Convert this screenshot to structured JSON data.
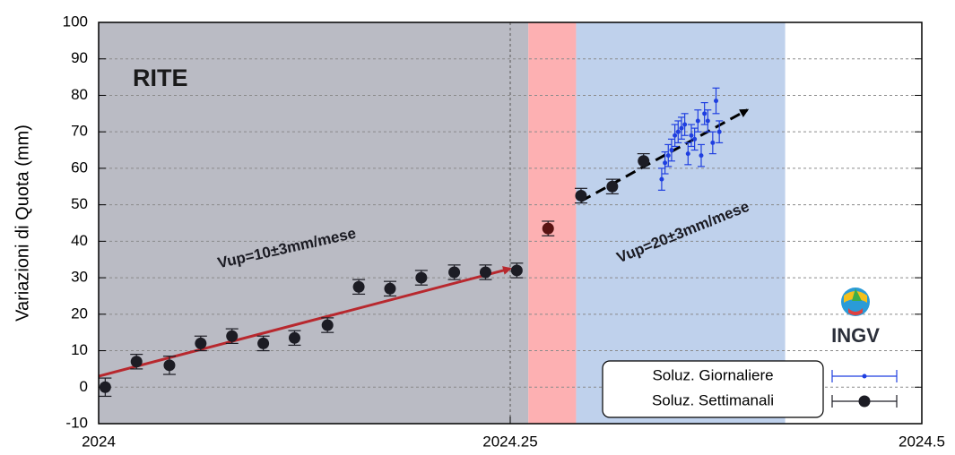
{
  "chart_data": {
    "type": "scatter",
    "y_label": "Variazioni di Quota (mm)",
    "station": "RITE",
    "xlim": [
      2024,
      2024.5
    ],
    "xticks": [
      2024,
      2024.25,
      2024.5
    ],
    "ylim": [
      -10,
      100
    ],
    "yticks": [
      -10,
      0,
      10,
      20,
      30,
      40,
      50,
      60,
      70,
      80,
      90,
      100
    ],
    "grid": true,
    "regions": [
      {
        "from": 2024,
        "to": 2024.261,
        "color": "#babbc4"
      },
      {
        "from": 2024.261,
        "to": 2024.29,
        "color": "#fdb0b2"
      },
      {
        "from": 2024.29,
        "to": 2024.417,
        "color": "#bfd1ec"
      }
    ],
    "series": [
      {
        "name": "Soluz. Giornaliere",
        "color": "#1f3fe0",
        "marker_size": 2.5,
        "x": [
          2024.342,
          2024.344,
          2024.346,
          2024.348,
          2024.35,
          2024.352,
          2024.354,
          2024.356,
          2024.358,
          2024.36,
          2024.362,
          2024.364,
          2024.366,
          2024.368,
          2024.37,
          2024.373,
          2024.375,
          2024.377
        ],
        "values": [
          57,
          61.5,
          63.5,
          65,
          69,
          70,
          71,
          72,
          64,
          69,
          68,
          73,
          63.5,
          75,
          73,
          67,
          78.5,
          70
        ],
        "errors": [
          3,
          3,
          3,
          3,
          3,
          3,
          3,
          3,
          3,
          3,
          3,
          3,
          3,
          3,
          3,
          3,
          3.5,
          3
        ]
      },
      {
        "name": "Soluz. Settimanali",
        "color": "#1c1c24",
        "marker_size": 6.5,
        "point_colors": [
          "#1c1c24",
          "#1c1c24",
          "#1c1c24",
          "#1c1c24",
          "#1c1c24",
          "#1c1c24",
          "#1c1c24",
          "#1c1c24",
          "#1c1c24",
          "#1c1c24",
          "#1c1c24",
          "#1c1c24",
          "#1c1c24",
          "#1c1c24",
          "#5a1212",
          "#1c1c24",
          "#1c1c24",
          "#1c1c24"
        ],
        "x": [
          2024.004,
          2024.023,
          2024.043,
          2024.062,
          2024.081,
          2024.1,
          2024.119,
          2024.139,
          2024.158,
          2024.177,
          2024.196,
          2024.216,
          2024.235,
          2024.254,
          2024.273,
          2024.293,
          2024.312,
          2024.331
        ],
        "values": [
          0,
          7,
          6,
          12,
          14,
          12,
          13.5,
          17,
          27.5,
          27,
          30,
          31.5,
          31.5,
          32,
          43.5,
          52.5,
          55,
          62
        ],
        "errors": [
          2.5,
          2,
          2.5,
          2,
          2,
          2,
          2,
          2,
          2,
          2,
          2,
          2,
          2,
          2,
          2,
          2,
          2,
          2
        ]
      }
    ],
    "arrows": [
      {
        "x": [
          2024,
          2024.25
        ],
        "y": [
          3,
          32.5
        ],
        "color": "#b8282e",
        "dashed": false
      },
      {
        "x": [
          2024.293,
          2024.394
        ],
        "y": [
          51,
          76
        ],
        "color": "#000000",
        "dashed": true
      }
    ],
    "annotations": [
      "Vup=10±3mm/mese",
      "Vup=20±3mm/mese"
    ],
    "logo_text": "INGV"
  }
}
